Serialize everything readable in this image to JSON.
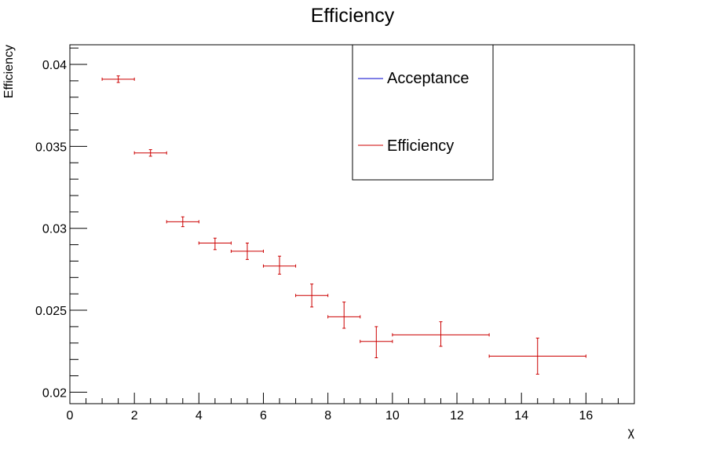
{
  "chart_data": {
    "type": "scatter",
    "title": "Efficiency",
    "xlabel": "χ",
    "ylabel": "Efficiency",
    "xlim": [
      0,
      17.5
    ],
    "ylim": [
      0.0193,
      0.0412
    ],
    "x_ticks": [
      0,
      2,
      4,
      6,
      8,
      10,
      12,
      14,
      16
    ],
    "x_tick_labels": [
      "0",
      "2",
      "4",
      "6",
      "8",
      "10",
      "12",
      "14",
      "16"
    ],
    "y_ticks": [
      0.02,
      0.025,
      0.03,
      0.035,
      0.04
    ],
    "y_tick_labels": [
      "0.02",
      "0.025",
      "0.03",
      "0.035",
      "0.04"
    ],
    "grid": false,
    "legend_position": "top-right",
    "series": [
      {
        "name": "Acceptance",
        "color": "#0000cc",
        "points": []
      },
      {
        "name": "Efficiency",
        "color": "#cc0000",
        "points": [
          {
            "x": 1.5,
            "xlo": 1,
            "xhi": 2,
            "y": 0.0391,
            "ylo": 0.0389,
            "yhi": 0.0393
          },
          {
            "x": 2.5,
            "xlo": 2,
            "xhi": 3,
            "y": 0.0346,
            "ylo": 0.0344,
            "yhi": 0.0348
          },
          {
            "x": 3.5,
            "xlo": 3,
            "xhi": 4,
            "y": 0.0304,
            "ylo": 0.0301,
            "yhi": 0.0307
          },
          {
            "x": 4.5,
            "xlo": 4,
            "xhi": 5,
            "y": 0.0291,
            "ylo": 0.0287,
            "yhi": 0.0294
          },
          {
            "x": 5.5,
            "xlo": 5,
            "xhi": 6,
            "y": 0.0286,
            "ylo": 0.0281,
            "yhi": 0.0291
          },
          {
            "x": 6.5,
            "xlo": 6,
            "xhi": 7,
            "y": 0.0277,
            "ylo": 0.0272,
            "yhi": 0.0283
          },
          {
            "x": 7.5,
            "xlo": 7,
            "xhi": 8,
            "y": 0.0259,
            "ylo": 0.0252,
            "yhi": 0.0266
          },
          {
            "x": 8.5,
            "xlo": 8,
            "xhi": 9,
            "y": 0.0246,
            "ylo": 0.0239,
            "yhi": 0.0255
          },
          {
            "x": 9.5,
            "xlo": 9,
            "xhi": 10,
            "y": 0.0231,
            "ylo": 0.0221,
            "yhi": 0.024
          },
          {
            "x": 11.5,
            "xlo": 10,
            "xhi": 13,
            "y": 0.0235,
            "ylo": 0.0228,
            "yhi": 0.0243
          },
          {
            "x": 14.5,
            "xlo": 13,
            "xhi": 16,
            "y": 0.0222,
            "ylo": 0.0211,
            "yhi": 0.0233
          }
        ]
      }
    ]
  }
}
